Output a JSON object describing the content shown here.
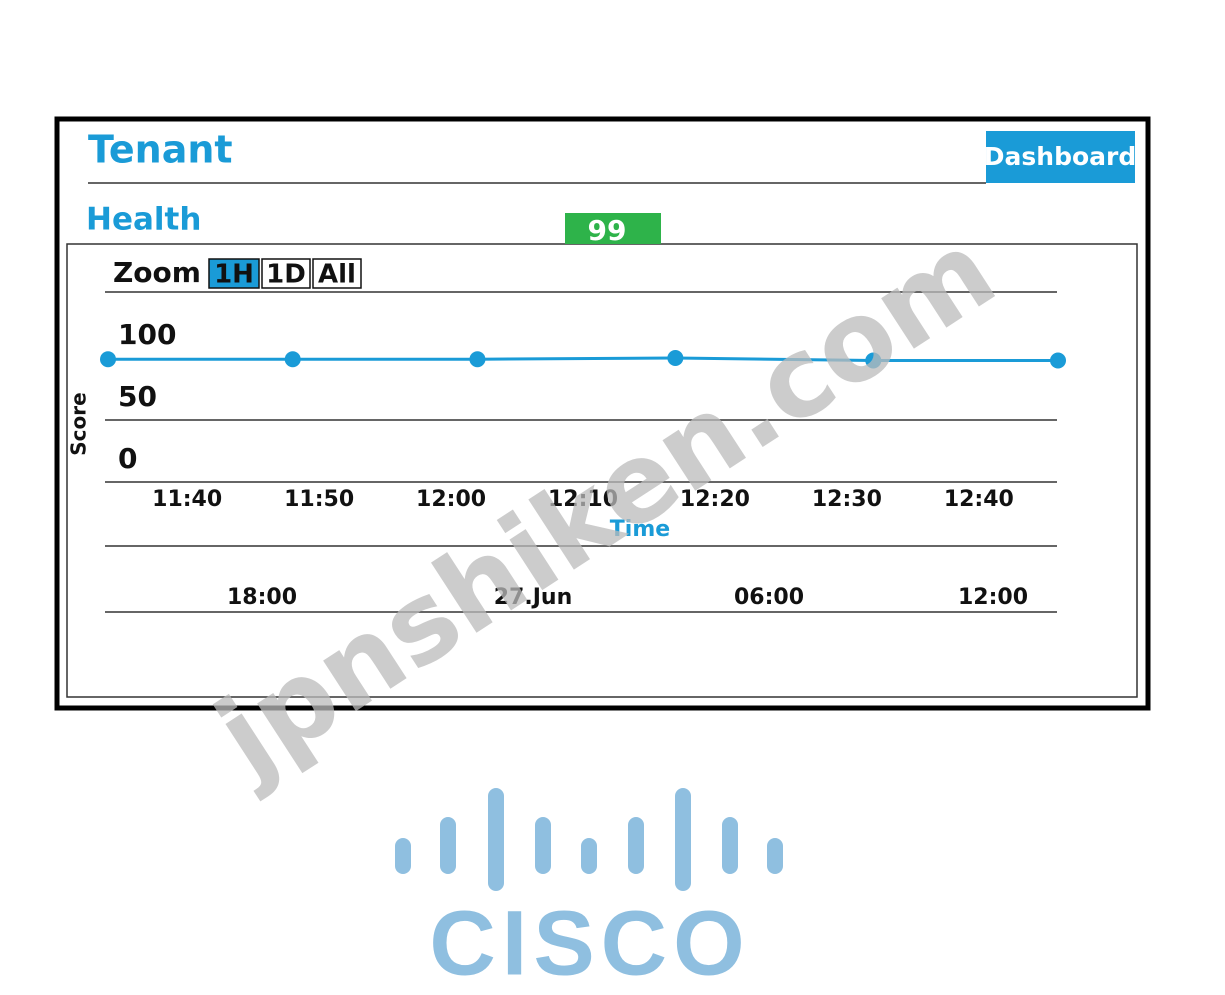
{
  "header": {
    "title": "Tenant",
    "button": "Dashboard"
  },
  "health": {
    "label": "Health",
    "score": 99
  },
  "zoom": {
    "label": "Zoom",
    "options": [
      "1H",
      "1D",
      "All"
    ],
    "selected_index": 0
  },
  "chart": {
    "type": "line",
    "y_label": "Score",
    "x_label": "Time",
    "color": "#1a9bd7",
    "ylim": [
      0,
      100
    ],
    "yticks": [
      0,
      50,
      100
    ],
    "xlim": [
      694,
      766
    ],
    "xticks": [
      {
        "value": 700,
        "label": "11:40"
      },
      {
        "value": 710,
        "label": "11:50"
      },
      {
        "value": 720,
        "label": "12:00"
      },
      {
        "value": 730,
        "label": "12:10"
      },
      {
        "value": 740,
        "label": "12:20"
      },
      {
        "value": 750,
        "label": "12:30"
      },
      {
        "value": 760,
        "label": "12:40"
      }
    ],
    "x": [
      694,
      708,
      722,
      737,
      752,
      766
    ],
    "values": [
      99,
      99,
      99,
      100,
      98,
      98
    ]
  },
  "overview": {
    "ticks": [
      "18:00",
      "27.Jun",
      "06:00",
      "12:00"
    ]
  },
  "watermark": "jpnshiken.com",
  "logo": "CISCO"
}
